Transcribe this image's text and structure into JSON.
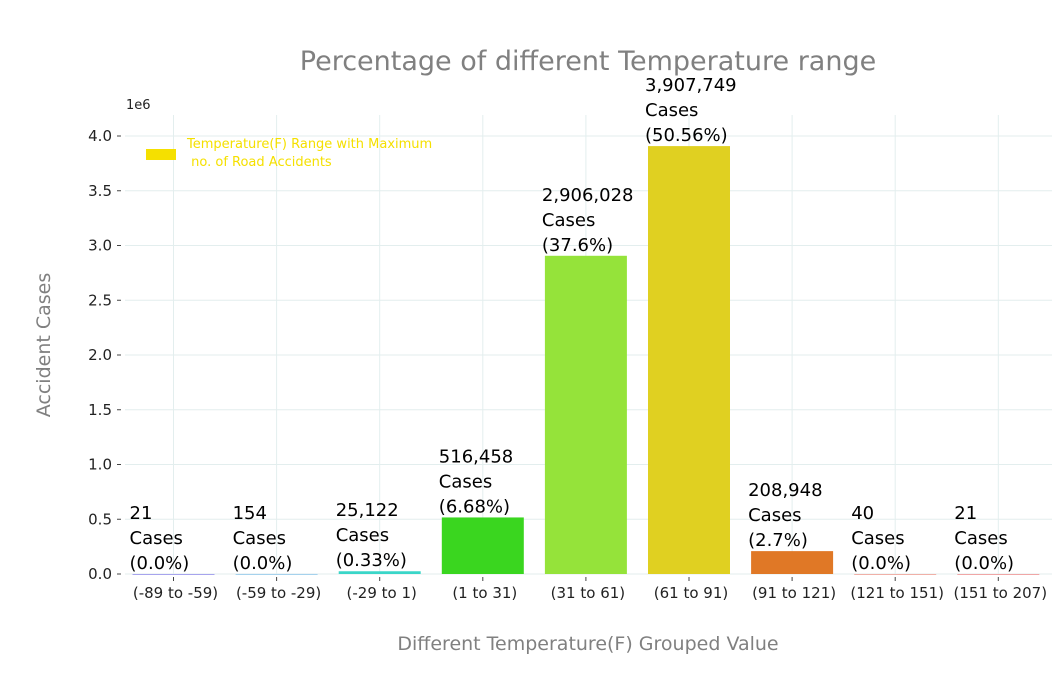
{
  "chart_data": {
    "type": "bar",
    "title": "Percentage of different Temperature range",
    "xlabel": "Different Temperature(F) Grouped Value",
    "ylabel": "Accident Cases",
    "y_offset_label": "1e6",
    "ylim": [
      0,
      4.2
    ],
    "yticks": [
      "0.0",
      "0.5",
      "1.0",
      "1.5",
      "2.0",
      "2.5",
      "3.0",
      "3.5",
      "4.0"
    ],
    "categories": [
      "(-89 to -59)",
      "(-59 to -29)",
      "(-29 to 1)",
      "(1 to 31)",
      "(31 to 61)",
      "(61 to 91)",
      "(91 to 121)",
      "(121 to 151)",
      "(151 to 207)"
    ],
    "values": [
      21,
      154,
      25122,
      516458,
      2906028,
      3907749,
      208948,
      40,
      21
    ],
    "data_labels": [
      [
        "21",
        "Cases",
        "(0.0%)"
      ],
      [
        "154",
        "Cases",
        "(0.0%)"
      ],
      [
        "25,122",
        "Cases",
        "(0.33%)"
      ],
      [
        "516,458",
        "Cases",
        "(6.68%)"
      ],
      [
        "2,906,028",
        "Cases",
        "(37.6%)"
      ],
      [
        "3,907,749",
        "Cases",
        "(50.56%)"
      ],
      [
        "208,948",
        "Cases",
        "(2.7%)"
      ],
      [
        "40",
        "Cases",
        "(0.0%)"
      ],
      [
        "21",
        "Cases",
        "(0.0%)"
      ]
    ],
    "colors": [
      "#2a1fd6",
      "#1f8fd6",
      "#3ad6c8",
      "#3ad61f",
      "#95e33a",
      "#e0d021",
      "#e07826",
      "#e03e26",
      "#e02626"
    ],
    "grid": true,
    "legend": {
      "placement": "upper-left",
      "entries": [
        {
          "label_line1": "Temperature(F) Range with Maximum",
          "label_line2": " no. of Road Accidents",
          "color": "#f5e000"
        }
      ]
    }
  }
}
